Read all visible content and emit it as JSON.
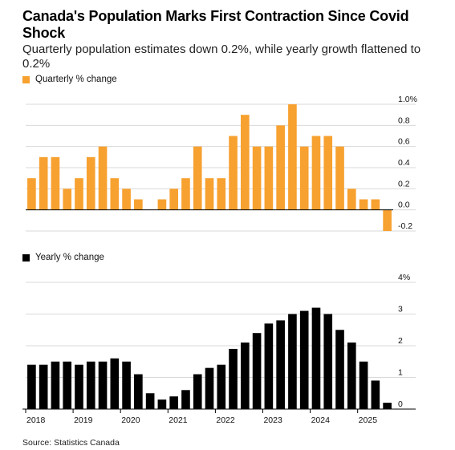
{
  "header": {
    "title": "Canada's Population Marks First Contraction Since Covid Shock",
    "subtitle": "Quarterly population estimates down 0.2%, while yearly growth flattened to 0.2%"
  },
  "source": "Source: Statistics Canada",
  "colors": {
    "quarterly": "#F7A130",
    "yearly": "#000000",
    "grid": "#D9D9D9"
  },
  "chart_data": [
    {
      "type": "bar",
      "legend": "Quarterly % change",
      "yticks": [
        "1.0%",
        "0.8",
        "0.6",
        "0.4",
        "0.2",
        "0.0",
        "-0.2"
      ],
      "ylim": [
        -0.2,
        1.0
      ],
      "values": [
        0.3,
        0.5,
        0.5,
        0.2,
        0.3,
        0.5,
        0.6,
        0.3,
        0.2,
        0.1,
        0.0,
        0.1,
        0.2,
        0.3,
        0.6,
        0.3,
        0.3,
        0.7,
        0.9,
        0.6,
        0.6,
        0.8,
        1.0,
        0.6,
        0.7,
        0.7,
        0.6,
        0.2,
        0.1,
        0.1,
        -0.2
      ]
    },
    {
      "type": "bar",
      "legend": "Yearly % change",
      "yticks": [
        "4%",
        "3",
        "2",
        "1",
        "0"
      ],
      "ylim": [
        0,
        4
      ],
      "xticks": [
        "2018",
        "2019",
        "2020",
        "2021",
        "2022",
        "2023",
        "2024",
        "2025"
      ],
      "values": [
        1.4,
        1.4,
        1.5,
        1.5,
        1.4,
        1.5,
        1.5,
        1.6,
        1.5,
        1.1,
        0.5,
        0.3,
        0.4,
        0.6,
        1.1,
        1.3,
        1.4,
        1.9,
        2.1,
        2.4,
        2.7,
        2.8,
        3.0,
        3.1,
        3.2,
        3.0,
        2.5,
        2.1,
        1.5,
        0.9,
        0.2
      ]
    }
  ]
}
